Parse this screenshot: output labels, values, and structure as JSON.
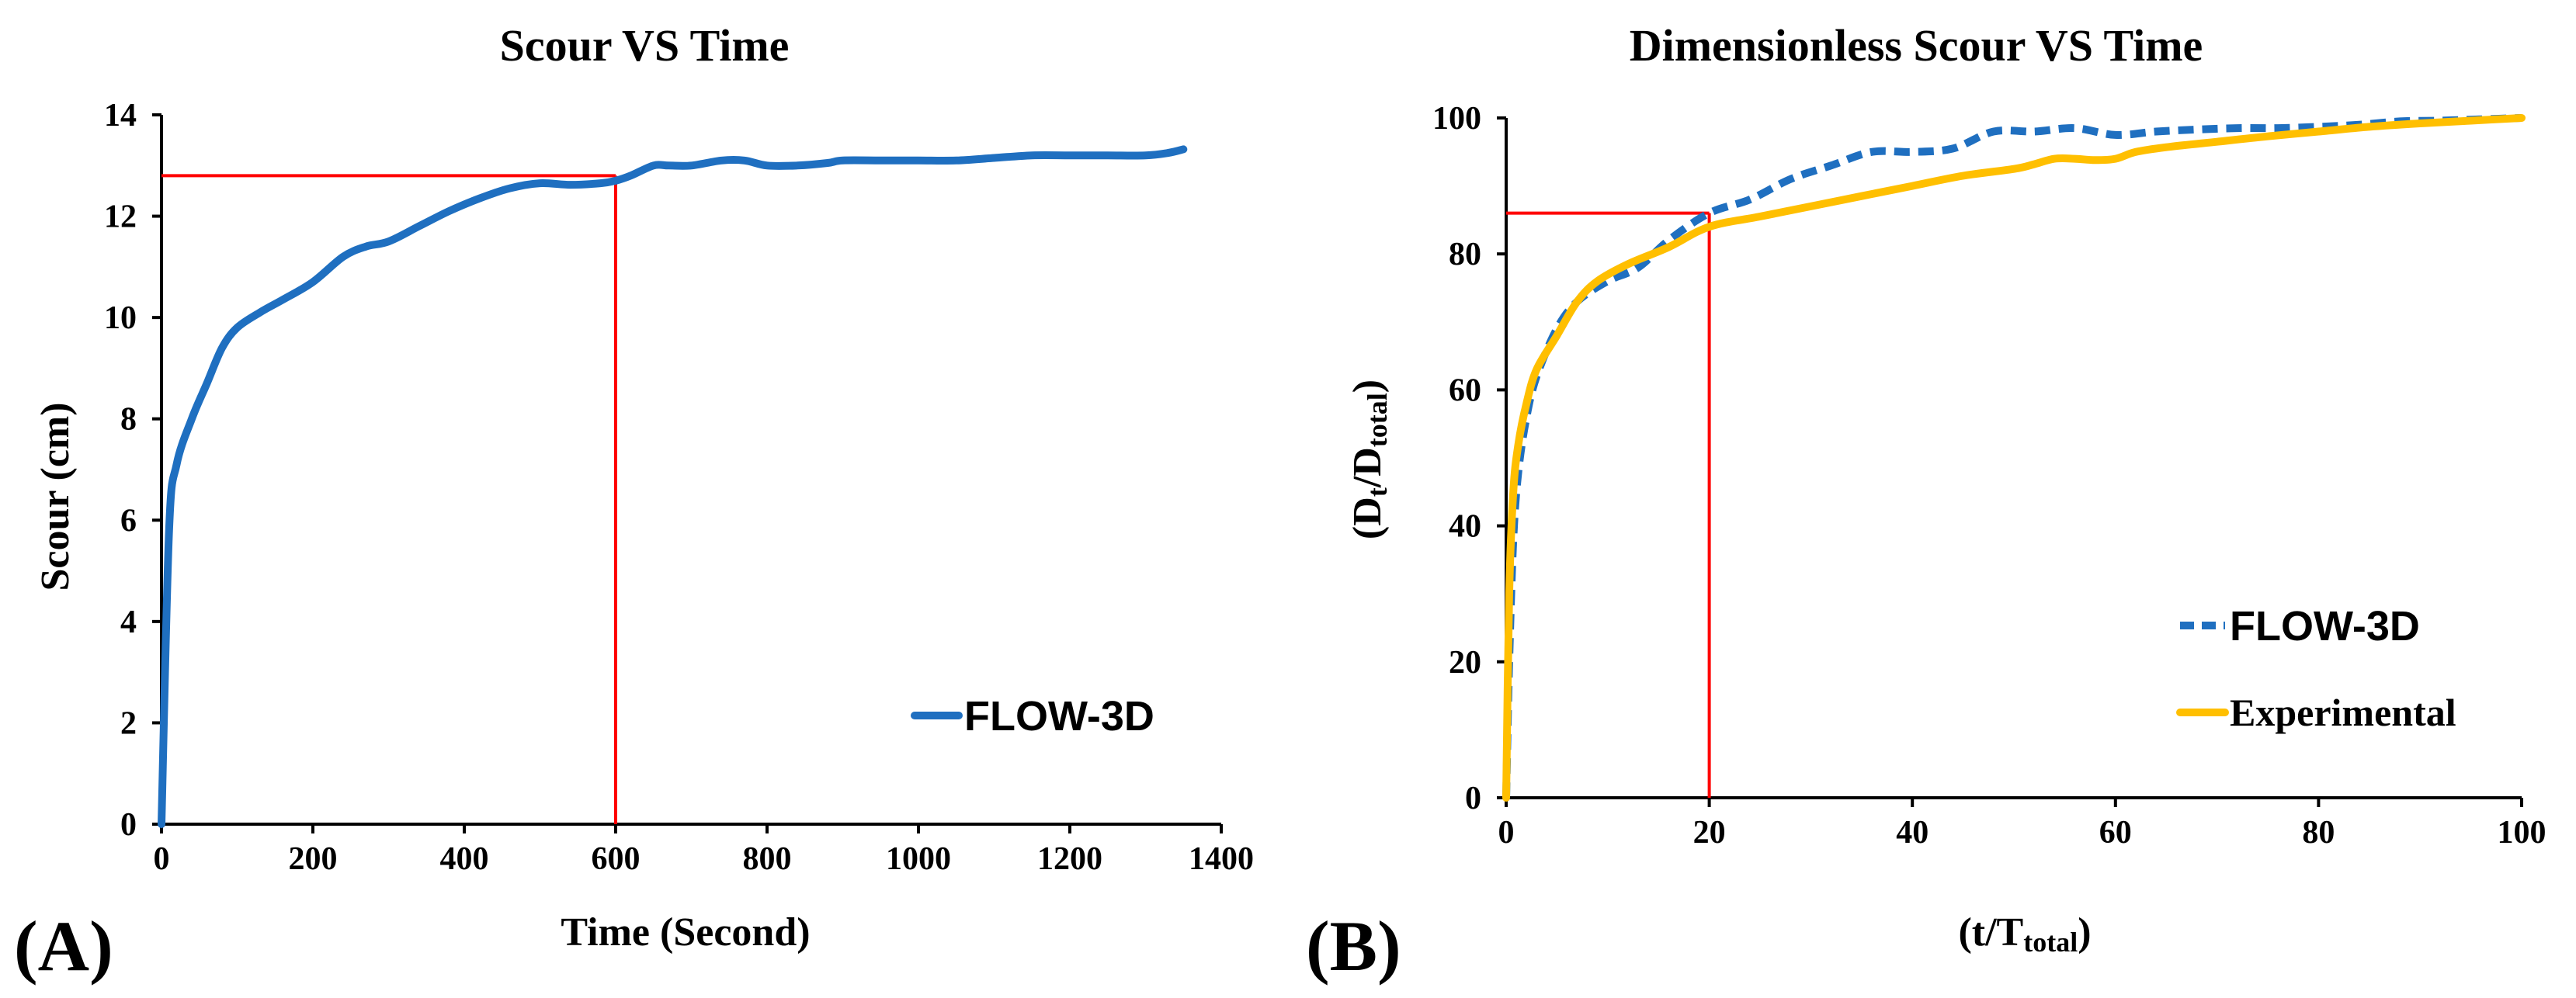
{
  "chart_data": [
    {
      "type": "line",
      "panel_label": "(A)",
      "title": "Scour VS Time",
      "xlabel": "Time (Second)",
      "ylabel": "Scour (cm)",
      "xlim": [
        0,
        1400
      ],
      "ylim": [
        0,
        14
      ],
      "xticks": [
        0,
        200,
        400,
        600,
        800,
        1000,
        1200,
        1400
      ],
      "yticks": [
        0,
        2,
        4,
        6,
        8,
        10,
        12,
        14
      ],
      "legend_position": "bottom-right",
      "series": [
        {
          "name": "FLOW-3D",
          "color": "#1f6fc0",
          "style": "solid",
          "x": [
            0,
            10,
            20,
            40,
            60,
            80,
            100,
            130,
            160,
            200,
            240,
            270,
            300,
            340,
            380,
            420,
            460,
            500,
            540,
            580,
            600,
            620,
            650,
            670,
            700,
            740,
            770,
            800,
            840,
            880,
            900,
            950,
            1000,
            1050,
            1100,
            1150,
            1200,
            1250,
            1300,
            1330,
            1350
          ],
          "y": [
            0,
            5.8,
            7.1,
            8.0,
            8.7,
            9.4,
            9.8,
            10.1,
            10.35,
            10.7,
            11.2,
            11.4,
            11.5,
            11.8,
            12.1,
            12.35,
            12.55,
            12.65,
            12.62,
            12.65,
            12.7,
            12.8,
            13.0,
            13.0,
            13.0,
            13.1,
            13.1,
            13.0,
            13.0,
            13.05,
            13.1,
            13.1,
            13.1,
            13.1,
            13.15,
            13.2,
            13.2,
            13.2,
            13.2,
            13.25,
            13.32
          ]
        }
      ],
      "reference_lines": {
        "color": "#ff0000",
        "x": 600,
        "y": 12.8
      }
    },
    {
      "type": "line",
      "panel_label": "(B)",
      "title": "Dimensionless Scour VS Time",
      "xlabel_main": "(t/T",
      "xlabel_sub": "total",
      "xlabel_close": ")",
      "ylabel_main1": "(D",
      "ylabel_sub1": "t",
      "ylabel_main2": "/D",
      "ylabel_sub2": "total",
      "ylabel_close": ")",
      "xlim": [
        0,
        100
      ],
      "ylim": [
        0,
        100
      ],
      "xticks": [
        0,
        20,
        40,
        60,
        80,
        100
      ],
      "yticks": [
        0,
        20,
        40,
        60,
        80,
        100
      ],
      "legend_position": "bottom-right",
      "series": [
        {
          "name": "FLOW-3D",
          "color": "#1f6fc0",
          "style": "dashed",
          "x": [
            0,
            0.3,
            0.7,
            1.2,
            2,
            3,
            5,
            7,
            10,
            13,
            16,
            20,
            24,
            28,
            32,
            36,
            40,
            44,
            48,
            52,
            56,
            60,
            64,
            68,
            72,
            76,
            80,
            84,
            88,
            92,
            96,
            100
          ],
          "y": [
            0,
            20,
            38,
            48,
            56,
            62,
            69,
            73,
            76,
            78,
            82,
            86,
            88,
            91,
            93,
            95,
            95,
            95.5,
            98,
            98,
            98.5,
            97.5,
            98,
            98.3,
            98.5,
            98.5,
            98.7,
            99,
            99.5,
            99.6,
            99.8,
            100
          ]
        },
        {
          "name": "Experimental",
          "color": "#ffbf00",
          "style": "solid",
          "x": [
            0,
            0.3,
            0.7,
            1.2,
            2,
            3,
            5,
            7,
            9,
            12,
            16,
            20,
            25,
            30,
            35,
            40,
            45,
            50,
            52,
            54,
            56,
            58,
            60,
            62,
            65,
            70,
            75,
            80,
            85,
            90,
            95,
            100
          ],
          "y": [
            0,
            30,
            45,
            52,
            58,
            63,
            68,
            73,
            76,
            78.5,
            81,
            84,
            85.5,
            87,
            88.5,
            90,
            91.5,
            92.5,
            93.2,
            94,
            94,
            93.8,
            94,
            95,
            95.7,
            96.5,
            97.3,
            98,
            98.7,
            99.2,
            99.6,
            100
          ]
        }
      ],
      "reference_lines": {
        "color": "#ff0000",
        "x": 20,
        "y": 86
      }
    }
  ]
}
